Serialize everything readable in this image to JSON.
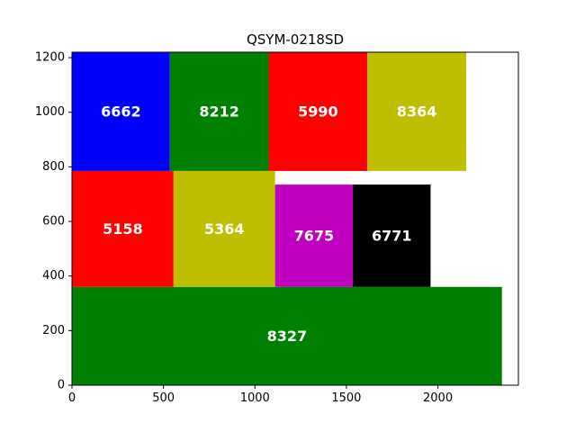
{
  "chart_data": {
    "type": "bar",
    "title": "QSYM-0218SD",
    "xlabel": "",
    "ylabel": "",
    "xlim": [
      0,
      2440
    ],
    "ylim": [
      0,
      1220
    ],
    "xticks": [
      0,
      500,
      1000,
      1500,
      2000
    ],
    "yticks": [
      0,
      200,
      400,
      600,
      800,
      1000,
      1200
    ],
    "grid": false,
    "rows": [
      {
        "y_start": 0,
        "y_end": 360,
        "blocks": [
          {
            "label": "8327",
            "x_start": 0,
            "x_end": 2350,
            "color": "#008000"
          }
        ]
      },
      {
        "y_start": 360,
        "y_end": 785,
        "blocks": [
          {
            "label": "5158",
            "x_start": 0,
            "x_end": 555,
            "color": "#ff0000"
          },
          {
            "label": "5364",
            "x_start": 555,
            "x_end": 1110,
            "color": "#bfbf00"
          },
          {
            "label": "7675",
            "x_start": 1110,
            "x_end": 1535,
            "color": "#bf00bf"
          },
          {
            "label": "6771",
            "x_start": 1535,
            "x_end": 1960,
            "color": "#000000"
          }
        ],
        "block_tops": [
          785,
          785,
          735,
          735
        ]
      },
      {
        "y_start": 785,
        "y_end": 1220,
        "blocks": [
          {
            "label": "6662",
            "x_start": 0,
            "x_end": 535,
            "color": "#0000ff"
          },
          {
            "label": "8212",
            "x_start": 535,
            "x_end": 1075,
            "color": "#008000"
          },
          {
            "label": "5990",
            "x_start": 1075,
            "x_end": 1615,
            "color": "#ff0000"
          },
          {
            "label": "8364",
            "x_start": 1615,
            "x_end": 2155,
            "color": "#bfbf00"
          }
        ],
        "block_tops": [
          1220,
          1220,
          1220,
          1220
        ],
        "block_bottoms": [
          785,
          785,
          785,
          785
        ]
      }
    ]
  }
}
